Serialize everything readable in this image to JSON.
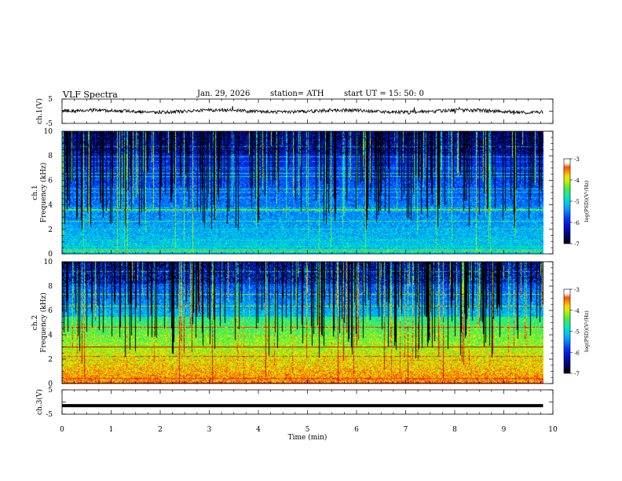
{
  "header": {
    "title": "VLF  Spectra",
    "date": "Jan. 29, 2026",
    "station": "station= ATH",
    "start": "start  UT  =    15: 50: 0"
  },
  "chart_data": [
    {
      "type": "line",
      "id": "ch1-waveform",
      "ylabel": "ch.1(V)",
      "ylim": [
        -5,
        5
      ],
      "y_ticks": [
        "5",
        "-5"
      ],
      "xlim": [
        0,
        10
      ],
      "x_extent": [
        0,
        9.8
      ],
      "level": 0
    },
    {
      "type": "heatmap",
      "id": "ch1-spectrogram",
      "ylabel": "ch.1\nFrequency  (kHz)",
      "ylim": [
        0,
        10
      ],
      "y_ticks": [
        "0",
        "2",
        "4",
        "6",
        "8",
        "10"
      ],
      "xlim": [
        0,
        10
      ],
      "x_extent": [
        0,
        9.8
      ],
      "colorbar": {
        "label": "log(PSD)(V²/Hz)",
        "range": [
          -7,
          -3
        ],
        "ticks": [
          "-3",
          "-4",
          "-5",
          "-6",
          "-7"
        ]
      }
    },
    {
      "type": "heatmap",
      "id": "ch2-spectrogram",
      "ylabel": "ch.2\nFrequency  (kHz)",
      "ylim": [
        0,
        10
      ],
      "y_ticks": [
        "0",
        "2",
        "4",
        "6",
        "8",
        "10"
      ],
      "xlim": [
        0,
        10
      ],
      "x_extent": [
        0,
        9.8
      ],
      "colorbar": {
        "label": "log(PSD)(V²/Hz)",
        "range": [
          -7,
          -3
        ],
        "ticks": [
          "-3",
          "-4",
          "-5",
          "-6",
          "-7"
        ]
      }
    },
    {
      "type": "line",
      "id": "ch3-waveform",
      "ylabel": "ch.3(V)",
      "ylim": [
        -5,
        5
      ],
      "y_ticks": [
        "5",
        "-5"
      ],
      "xlim": [
        0,
        10
      ],
      "x_extent": [
        0,
        9.8
      ],
      "level": -1.5
    }
  ],
  "x_axis": {
    "label": "Time  (min)",
    "ticks": [
      "0",
      "1",
      "2",
      "3",
      "4",
      "5",
      "6",
      "7",
      "8",
      "9",
      "10"
    ]
  }
}
